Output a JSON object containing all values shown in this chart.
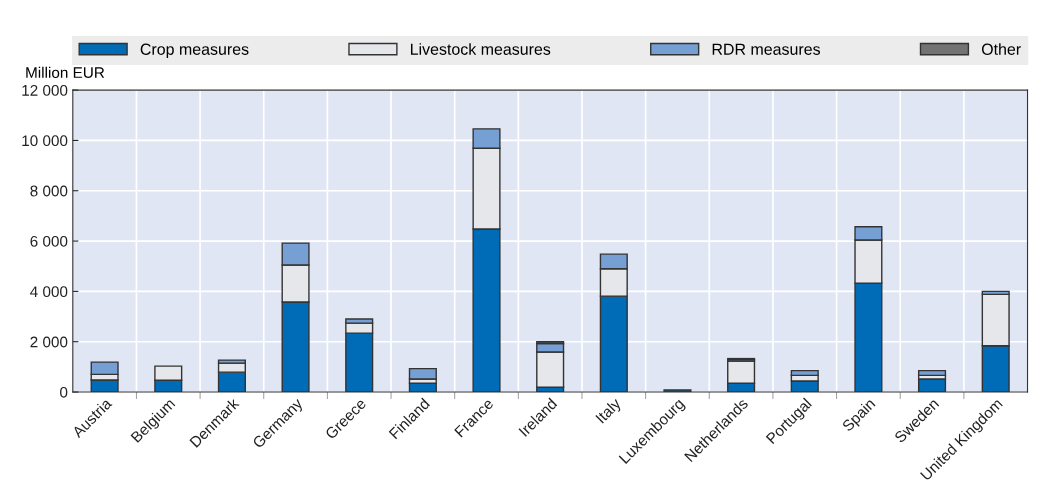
{
  "chart_data": {
    "type": "bar",
    "stacked": true,
    "ylabel": "Million EUR",
    "categories": [
      "Austria",
      "Belgium",
      "Denmark",
      "Germany",
      "Greece",
      "Finland",
      "France",
      "Ireland",
      "Italy",
      "Luxembourg",
      "Netherlands",
      "Portugal",
      "Spain",
      "Sweden",
      "United Kingdom"
    ],
    "series": [
      {
        "name": "Crop measures",
        "color": "#006bb6",
        "values": [
          480,
          470,
          790,
          3580,
          2340,
          350,
          6480,
          190,
          3810,
          80,
          350,
          440,
          4330,
          520,
          1840
        ]
      },
      {
        "name": "Livestock measures",
        "color": "#e6e7ea",
        "values": [
          220,
          560,
          360,
          1470,
          400,
          170,
          3210,
          1400,
          1090,
          0,
          880,
          220,
          1710,
          140,
          2040
        ]
      },
      {
        "name": "RDR measures",
        "color": "#769fd4",
        "values": [
          490,
          0,
          120,
          870,
          160,
          410,
          770,
          340,
          580,
          0,
          60,
          190,
          530,
          190,
          120
        ]
      },
      {
        "name": "Other",
        "color": "#737373",
        "values": [
          0,
          0,
          0,
          0,
          0,
          0,
          0,
          70,
          0,
          0,
          40,
          0,
          0,
          0,
          0
        ]
      }
    ],
    "ylim": [
      0,
      12000
    ],
    "yticks": [
      0,
      {
        "value": 2000,
        "label": "2 000"
      },
      {
        "value": 4000,
        "label": "4 000"
      },
      {
        "value": 6000,
        "label": "6 000"
      },
      {
        "value": 8000,
        "label": "8 000"
      },
      {
        "value": 10000,
        "label": "10 000"
      },
      {
        "value": 12000,
        "label": "12 000"
      }
    ],
    "grid": true,
    "legend": "top"
  }
}
